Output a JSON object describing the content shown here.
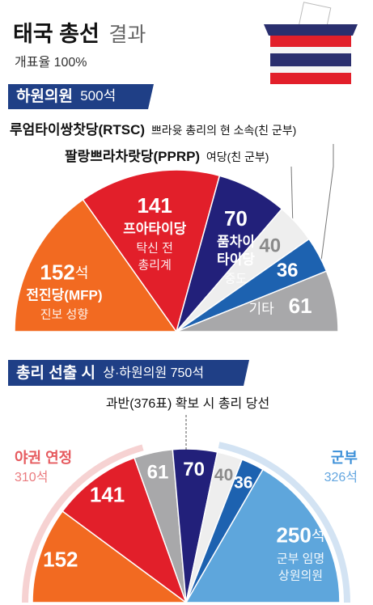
{
  "header": {
    "title": "태국 총선",
    "title_suffix": "결과",
    "subtitle": "개표율 100%"
  },
  "chart_data": [
    {
      "type": "pie",
      "section_title": "하원의원",
      "section_subtitle": "500석",
      "categories": [
        "전진당(MFP)",
        "프아타이당",
        "품차이\n타이당",
        "루엄타이쌍찻당(RTSC)",
        "팔랑쁘라차랏당(PPRP)",
        "기타"
      ],
      "descriptions": [
        "진보 성향",
        "탁신 전\n총리계",
        "중도",
        "쁘라윳 총리의 현 소속(친 군부)",
        "여당(친 군부)",
        null
      ],
      "values": [
        152,
        141,
        70,
        40,
        36,
        61
      ],
      "value_labels": [
        "152석",
        "141",
        "70",
        "40",
        "36",
        "61"
      ],
      "colors": [
        "#f26a21",
        "#e21f2a",
        "#22207a",
        "#eeeeee",
        "#1d62b0",
        "#a8a8aa"
      ]
    },
    {
      "type": "pie",
      "section_title": "총리 선출 시",
      "section_subtitle": "상·하원의원 750석",
      "annotation": "과반(376표) 확보 시 총리 당선",
      "values": [
        152,
        141,
        61,
        70,
        40,
        36,
        250
      ],
      "value_labels": [
        "152",
        "141",
        "61",
        "70",
        "40",
        "36",
        "250석"
      ],
      "descriptions": [
        null,
        null,
        null,
        null,
        null,
        null,
        "군부 임명\n상원의원"
      ],
      "colors": [
        "#f26a21",
        "#e21f2a",
        "#a8a8aa",
        "#22207a",
        "#eeeeee",
        "#1d62b0",
        "#5ea6dc"
      ],
      "groups": [
        {
          "name": "야권 연정",
          "value": 310,
          "value_label": "310석",
          "color": "#f6d2d2",
          "text_color": "#e65a5e"
        },
        {
          "name": "군부",
          "value": 326,
          "value_label": "326석",
          "color": "#d3e3f3",
          "text_color": "#3b8fd8"
        }
      ]
    }
  ]
}
